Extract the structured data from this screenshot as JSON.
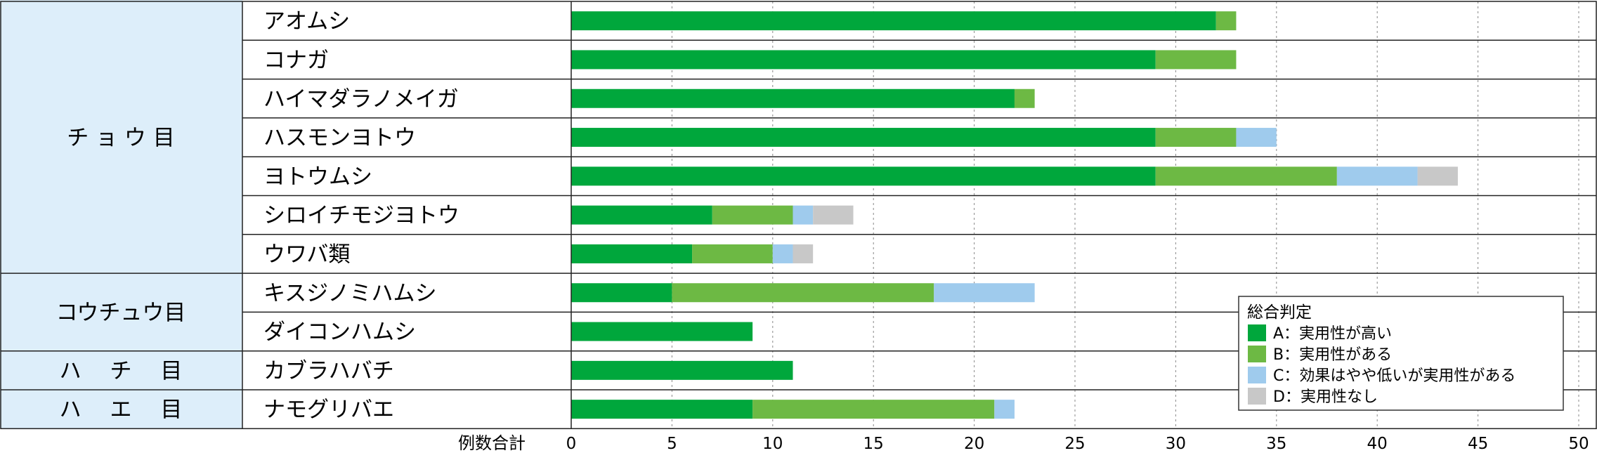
{
  "chart_data": {
    "type": "bar",
    "orientation": "horizontal",
    "stacked": true,
    "xlabel": "例数合計",
    "xlim": [
      0,
      50
    ],
    "xticks": [
      0,
      5,
      10,
      15,
      20,
      25,
      30,
      35,
      40,
      45,
      50
    ],
    "grid": true,
    "groups": [
      {
        "name": "チ ョ ウ 目",
        "rows": 7
      },
      {
        "name": "コウチュウ目",
        "rows": 2
      },
      {
        "name": "ハ　 チ　 目",
        "rows": 1
      },
      {
        "name": "ハ　 エ　 目",
        "rows": 1
      }
    ],
    "categories": [
      "アオムシ",
      "コナガ",
      "ハイマダラノメイガ",
      "ハスモンヨトウ",
      "ヨトウムシ",
      "シロイチモジヨトウ",
      "ウワバ類",
      "キスジノミハムシ",
      "ダイコンハムシ",
      "カブラハバチ",
      "ナモグリバエ"
    ],
    "series": [
      {
        "name": "A：実用性が高い",
        "color": "#00a73c",
        "values": [
          32,
          29,
          22,
          29,
          29,
          7,
          6,
          5,
          9,
          11,
          9
        ]
      },
      {
        "name": "B：実用性がある",
        "color": "#6db944",
        "values": [
          1,
          4,
          1,
          4,
          9,
          4,
          4,
          13,
          0,
          0,
          12
        ]
      },
      {
        "name": "C：効果はやや低いが実用性がある",
        "color": "#9fcbed",
        "values": [
          0,
          0,
          0,
          2,
          4,
          1,
          1,
          5,
          0,
          0,
          1
        ]
      },
      {
        "name": "D：実用性なし",
        "color": "#c8c8c8",
        "values": [
          0,
          0,
          0,
          0,
          2,
          2,
          1,
          0,
          0,
          0,
          0
        ]
      }
    ],
    "legend": {
      "title": "総合判定",
      "position": "bottom-right"
    }
  }
}
